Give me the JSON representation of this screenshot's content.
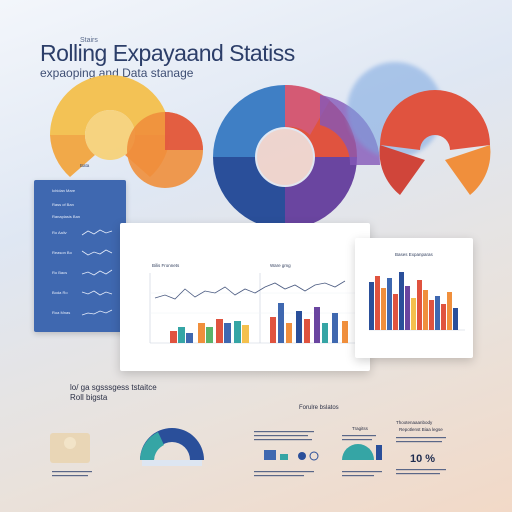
{
  "header": {
    "title": "Rolling Expayaand Statiss",
    "title_prefix": "Stairs",
    "subtitle": "expaoping and Data stanage"
  },
  "donut_caption": "Bata",
  "side_panel": {
    "labels": [
      "Ichidan Mare",
      "Rass of Ban",
      "Ranaplasis Ban"
    ],
    "rows": [
      "Ro Aaliv",
      "Reason Bo",
      "Ro Bacs",
      "Boda Ro",
      "Roa Mnas"
    ]
  },
  "main_card": {
    "heading": "Bilis Fronnets",
    "mid_heading": "Ware gmg"
  },
  "right_card": {
    "heading": "Bases Expanparas"
  },
  "bottom": {
    "left_caption_line1": "lo/ ga sgsssgess tstaitce",
    "left_caption_line2": "Roll bigsta",
    "center_caption": "Forulre bslatos",
    "mini_mid_head": "Tragitss",
    "mini_right_head1": "Thootenaaanbody",
    "mini_right_head2": "Repotlenst Biaa legse",
    "percent": "10 %"
  },
  "colors": {
    "blue": "#3f68b0",
    "navy": "#2a4f9a",
    "red": "#e0533f",
    "orange": "#f08f3c",
    "yellow": "#f4c04d",
    "teal": "#35a5a5",
    "purple": "#6a45a0",
    "green": "#5ab36a"
  }
}
